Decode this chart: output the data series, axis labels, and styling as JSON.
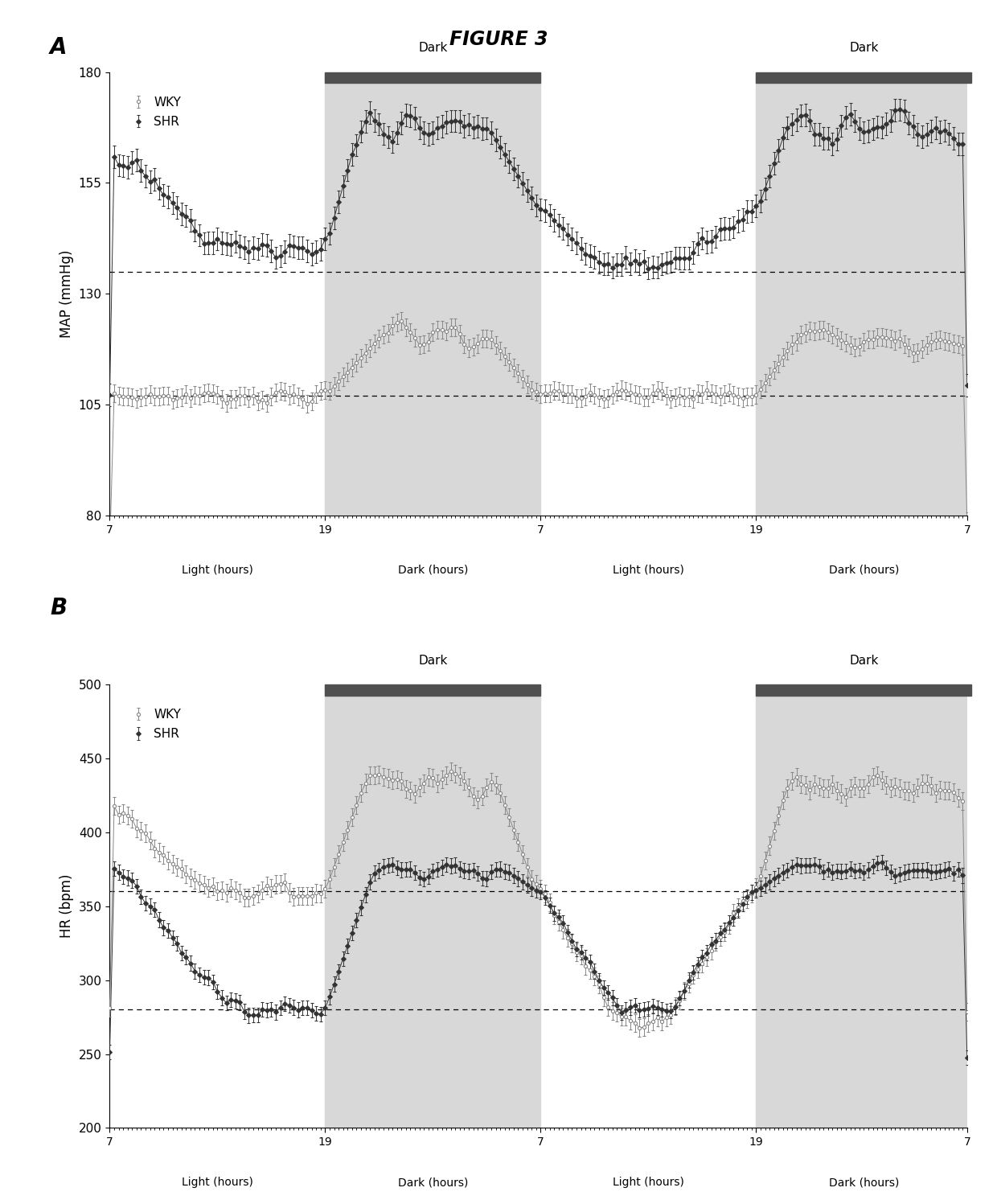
{
  "title": "FIGURE 3",
  "panel_A_label": "A",
  "panel_B_label": "B",
  "panel_A_ylabel": "MAP (mmHg)",
  "panel_B_ylabel": "HR (bpm)",
  "xlabel_light": "Light (hours)",
  "xlabel_dark": "Dark (hours)",
  "dark_label": "Dark",
  "wky_label": "WKY",
  "shr_label": "SHR",
  "panel_A_ylim": [
    80,
    180
  ],
  "panel_A_yticks": [
    80,
    105,
    130,
    155,
    180
  ],
  "panel_B_ylim": [
    200,
    500
  ],
  "panel_B_yticks": [
    200,
    250,
    300,
    350,
    400,
    450,
    500
  ],
  "panel_A_hline1": 135,
  "panel_A_hline2": 107,
  "panel_B_hline1": 280,
  "panel_B_hline2": 360,
  "dark_shade_color": "#d8d8d8",
  "dark_top_color": "#505050",
  "wky_color": "#888888",
  "shr_color": "#333333",
  "n_pts": 192,
  "seg": 48
}
